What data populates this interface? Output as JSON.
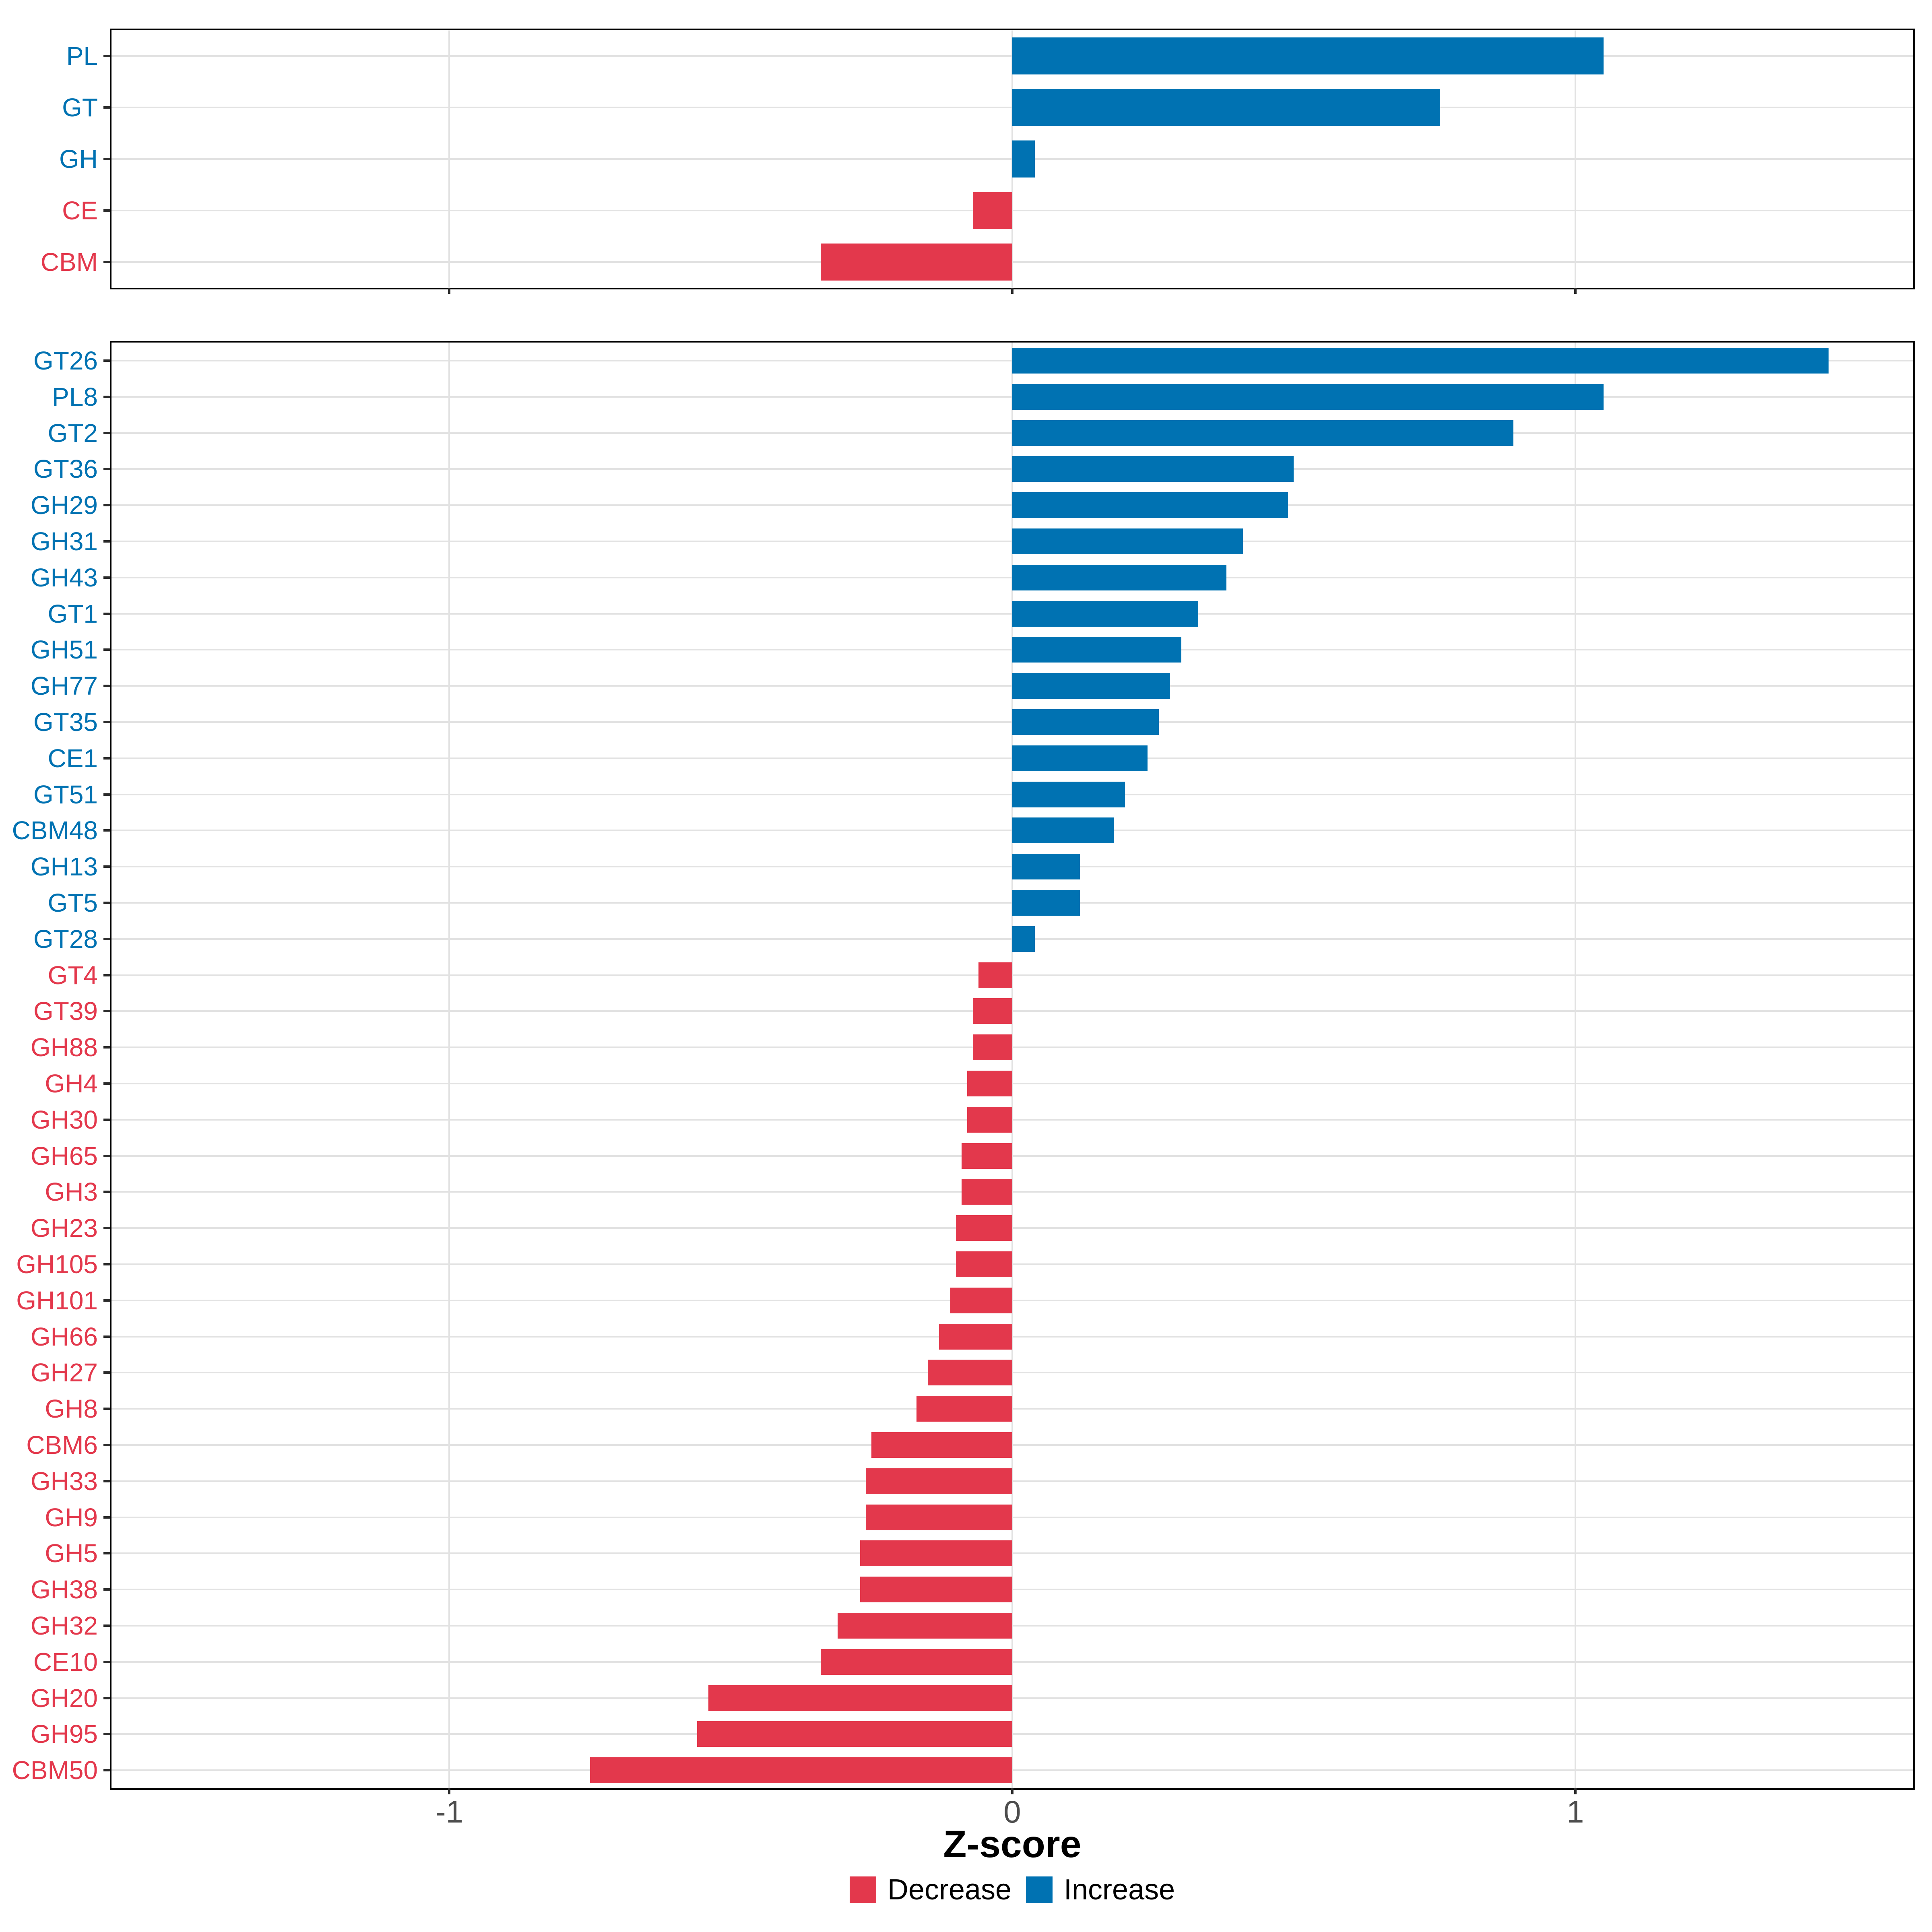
{
  "figure": {
    "xlabel": "Z-score"
  },
  "legend": {
    "position": "bottom",
    "items": [
      {
        "name": "decrease",
        "label": "Decrease",
        "color": "#E3384C"
      },
      {
        "name": "increase",
        "label": "Increase",
        "color": "#0072B2"
      }
    ]
  },
  "colors": {
    "increase": "#0072B2",
    "decrease": "#E3384C",
    "grid": "#E2E2E2",
    "panel_border": "#000000",
    "tick": "#2b2b2b",
    "tick_label": "#4D4D4D"
  },
  "chart_data": [
    {
      "type": "bar",
      "orientation": "horizontal",
      "panel": "top",
      "title": "",
      "xlabel": "Z-score",
      "ylabel": "",
      "grid": true,
      "xlim": [
        -1.6,
        1.6
      ],
      "xticks": [
        -1,
        0,
        1
      ],
      "categories": [
        "PL",
        "GT",
        "GH",
        "CE",
        "CBM"
      ],
      "values": [
        1.05,
        0.76,
        0.04,
        -0.07,
        -0.34
      ]
    },
    {
      "type": "bar",
      "orientation": "horizontal",
      "panel": "bottom",
      "title": "",
      "xlabel": "Z-score",
      "ylabel": "",
      "grid": true,
      "xlim": [
        -1.6,
        1.6
      ],
      "xticks": [
        -1,
        0,
        1
      ],
      "categories": [
        "GT26",
        "PL8",
        "GT2",
        "GT36",
        "GH29",
        "GH31",
        "GH43",
        "GT1",
        "GH51",
        "GH77",
        "GT35",
        "CE1",
        "GT51",
        "CBM48",
        "GH13",
        "GT5",
        "GT28",
        "GT4",
        "GT39",
        "GH88",
        "GH4",
        "GH30",
        "GH65",
        "GH3",
        "GH23",
        "GH105",
        "GH101",
        "GH66",
        "GH27",
        "GH8",
        "CBM6",
        "GH33",
        "GH9",
        "GH5",
        "GH38",
        "GH32",
        "CE10",
        "GH20",
        "GH95",
        "CBM50"
      ],
      "values": [
        1.45,
        1.05,
        0.89,
        0.5,
        0.49,
        0.41,
        0.38,
        0.33,
        0.3,
        0.28,
        0.26,
        0.24,
        0.2,
        0.18,
        0.12,
        0.12,
        0.04,
        -0.06,
        -0.07,
        -0.07,
        -0.08,
        -0.08,
        -0.09,
        -0.09,
        -0.1,
        -0.1,
        -0.11,
        -0.13,
        -0.15,
        -0.17,
        -0.25,
        -0.26,
        -0.26,
        -0.27,
        -0.27,
        -0.31,
        -0.34,
        -0.54,
        -0.56,
        -0.75
      ]
    }
  ]
}
